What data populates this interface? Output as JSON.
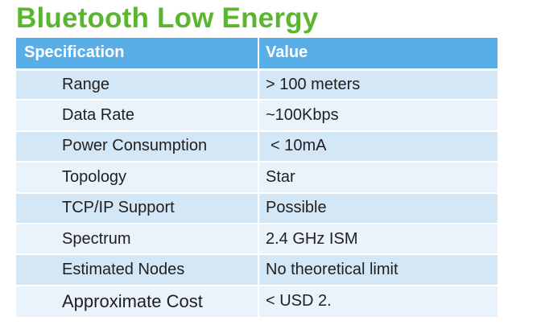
{
  "title": "Bluetooth Low Energy",
  "table": {
    "headers": {
      "specification": "Specification",
      "value": "Value"
    },
    "rows": [
      {
        "spec": "Range",
        "value": "> 100 meters"
      },
      {
        "spec": "Data Rate",
        "value": "~100Kbps"
      },
      {
        "spec": "Power Consumption",
        "value": "< 10mA"
      },
      {
        "spec": "Topology",
        "value": "Star"
      },
      {
        "spec": "TCP/IP Support",
        "value": "Possible"
      },
      {
        "spec": "Spectrum",
        "value": "2.4 GHz ISM"
      },
      {
        "spec": "Estimated Nodes",
        "value": "No theoretical limit"
      },
      {
        "spec": "Approximate Cost",
        "value": "< USD 2."
      }
    ]
  },
  "colors": {
    "title": "#5cb531",
    "header_bg": "#5aaee8",
    "row_dark": "#d4e7f7",
    "row_light": "#eaf3fb"
  }
}
